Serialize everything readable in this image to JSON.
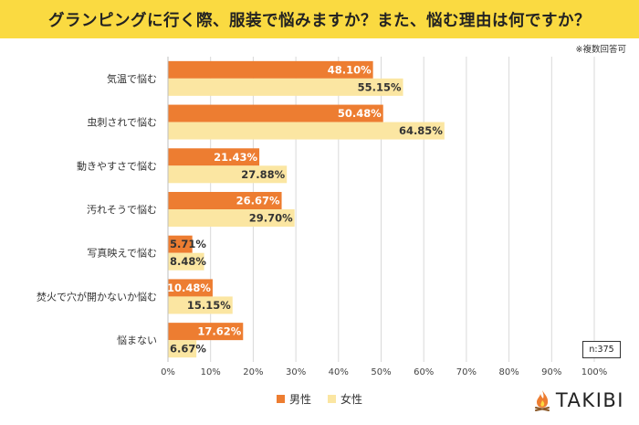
{
  "title": "グランピングに行く際、服装で悩みますか？また、悩む理由は何ですか？",
  "note": "※複数回答可",
  "sample": "n:375",
  "brand": "TAKIBI",
  "colors": {
    "male": "#ed7d31",
    "female": "#fbe6a2",
    "title_bg": "#fada41"
  },
  "chart_data": {
    "type": "bar",
    "orientation": "horizontal",
    "categories": [
      "気温で悩む",
      "虫刺されで悩む",
      "動きやすさで悩む",
      "汚れそうで悩む",
      "写真映えで悩む",
      "焚火で穴が開かないか悩む",
      "悩まない"
    ],
    "series": [
      {
        "name": "男性",
        "values": [
          48.1,
          50.48,
          21.43,
          26.67,
          5.71,
          10.48,
          17.62
        ],
        "labels": [
          "48.10%",
          "50.48%",
          "21.43%",
          "26.67%",
          "5.71%",
          "10.48%",
          "17.62%"
        ]
      },
      {
        "name": "女性",
        "values": [
          55.15,
          64.85,
          27.88,
          29.7,
          8.48,
          15.15,
          6.67
        ],
        "labels": [
          "55.15%",
          "64.85%",
          "27.88%",
          "29.70%",
          "8.48%",
          "15.15%",
          "6.67%"
        ]
      }
    ],
    "xlim": [
      0,
      100
    ],
    "x_ticks": [
      "0%",
      "10%",
      "20%",
      "30%",
      "40%",
      "50%",
      "60%",
      "70%",
      "80%",
      "90%",
      "100%"
    ],
    "grid": true,
    "legend": "bottom-center"
  }
}
